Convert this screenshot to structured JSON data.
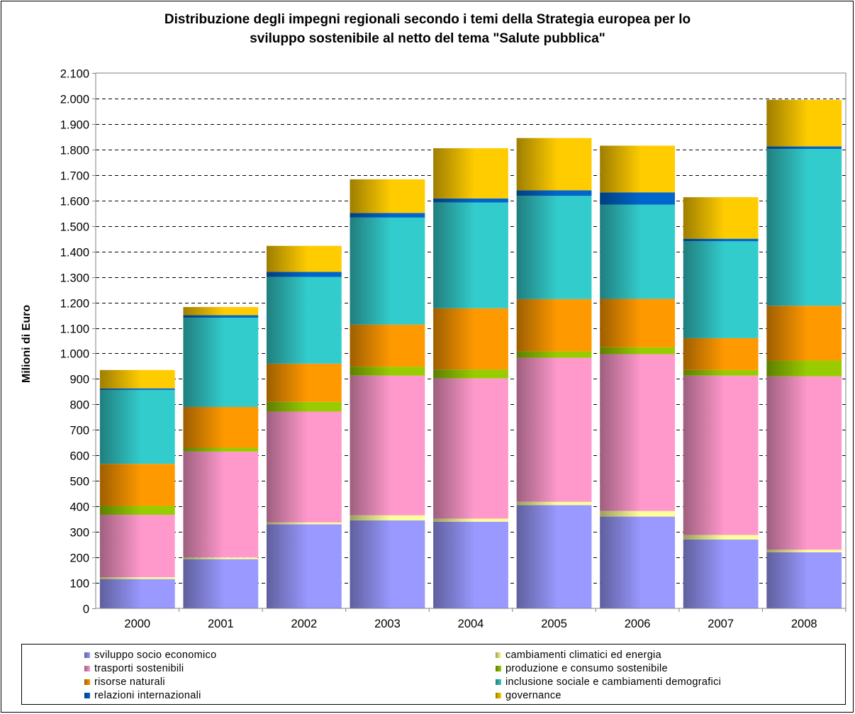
{
  "chart_data": {
    "type": "bar",
    "stacked": true,
    "title": "Distribuzione degli impegni regionali secondo i temi della Strategia europea per lo\nsviluppo sostenibile al netto del tema \"Salute pubblica\"",
    "ylabel": "Milioni di Euro",
    "xlabel": "",
    "ylim": [
      0,
      2100
    ],
    "yticks": [
      0,
      100,
      200,
      300,
      400,
      500,
      600,
      700,
      800,
      900,
      1000,
      1100,
      1200,
      1300,
      1400,
      1500,
      1600,
      1700,
      1800,
      1900,
      2000,
      2100
    ],
    "ytick_labels": [
      "0",
      "100",
      "200",
      "300",
      "400",
      "500",
      "600",
      "700",
      "800",
      "900",
      "1.000",
      "1.100",
      "1.200",
      "1.300",
      "1.400",
      "1.500",
      "1.600",
      "1.700",
      "1.800",
      "1.900",
      "2.000",
      "2.100"
    ],
    "grid": "horizontal dashed",
    "legend_position": "bottom",
    "categories": [
      "2000",
      "2001",
      "2002",
      "2003",
      "2004",
      "2005",
      "2006",
      "2007",
      "2008"
    ],
    "series": [
      {
        "name": "sviluppo socio economico",
        "color": "#9999FF",
        "values": [
          115,
          193,
          330,
          345,
          340,
          405,
          360,
          270,
          220
        ]
      },
      {
        "name": "cambiamenti climatici ed energia",
        "color": "#FFFF99",
        "values": [
          7,
          7,
          7,
          20,
          12,
          13,
          22,
          18,
          10
        ]
      },
      {
        "name": "trasporti sostenibili",
        "color": "#FF99CC",
        "values": [
          245,
          415,
          435,
          548,
          550,
          565,
          615,
          625,
          680
        ]
      },
      {
        "name": "produzione e consumo sostenibile",
        "color": "#99CC00",
        "values": [
          35,
          15,
          38,
          35,
          35,
          25,
          27,
          22,
          62
        ]
      },
      {
        "name": "risorse naturali",
        "color": "#FF9900",
        "values": [
          165,
          160,
          150,
          165,
          240,
          205,
          190,
          125,
          215
        ]
      },
      {
        "name": "inclusione sociale e cambiamenti demografici",
        "color": "#33CCCC",
        "values": [
          290,
          350,
          340,
          420,
          415,
          405,
          370,
          380,
          615
        ]
      },
      {
        "name": "relazioni internazionali",
        "color": "#0066CC",
        "values": [
          6,
          10,
          20,
          18,
          16,
          22,
          48,
          10,
          10
        ]
      },
      {
        "name": "governance",
        "color": "#FFCC00",
        "values": [
          72,
          32,
          102,
          132,
          197,
          205,
          183,
          163,
          183
        ]
      }
    ]
  }
}
